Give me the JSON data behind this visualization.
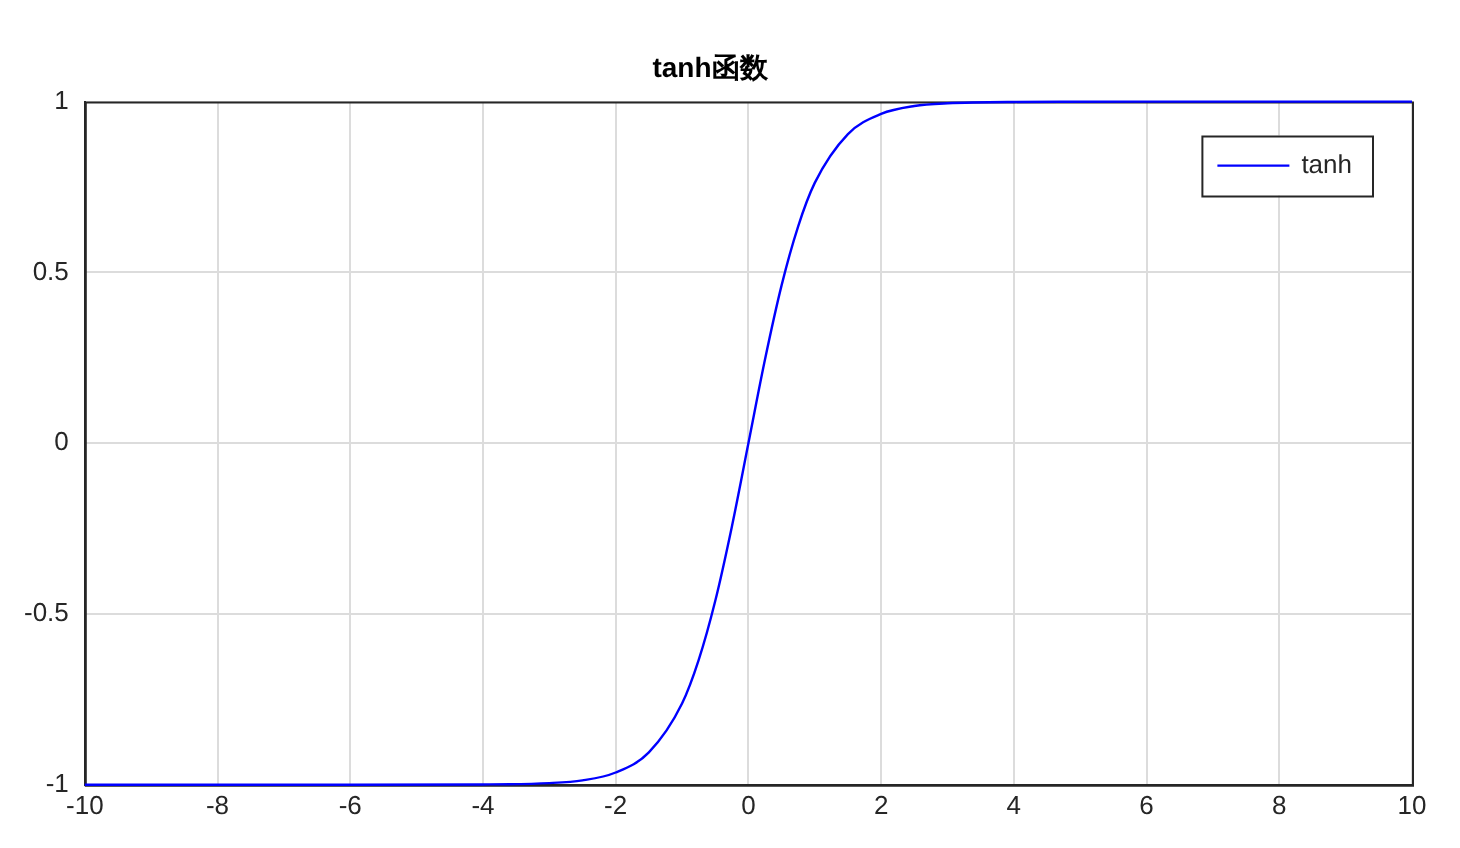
{
  "chart_data": {
    "type": "line",
    "title": "tanh函数",
    "x": [
      -10,
      -6,
      -4,
      -3,
      -2.5,
      -2,
      -1.5,
      -1,
      -0.75,
      -0.5,
      -0.25,
      0,
      0.25,
      0.5,
      0.75,
      1,
      1.5,
      2,
      2.5,
      3,
      4,
      6,
      10
    ],
    "series": [
      {
        "name": "tanh",
        "color": "#0000ff",
        "values": [
          -1,
          -1,
          -0.999,
          -0.995,
          -0.987,
          -0.964,
          -0.905,
          -0.762,
          -0.635,
          -0.462,
          -0.245,
          0,
          0.245,
          0.462,
          0.635,
          0.762,
          0.905,
          0.964,
          0.987,
          0.995,
          0.999,
          1,
          1
        ]
      }
    ],
    "xlim": [
      -10,
      10
    ],
    "xticks": [
      -10,
      -8,
      -6,
      -4,
      -2,
      0,
      2,
      4,
      6,
      8,
      10
    ],
    "ylim": [
      -1,
      1
    ],
    "yticks": [
      -1,
      -0.5,
      0,
      0.5,
      1
    ],
    "grid": true,
    "legend": "top right",
    "marker": "none",
    "line_style": "solid"
  }
}
